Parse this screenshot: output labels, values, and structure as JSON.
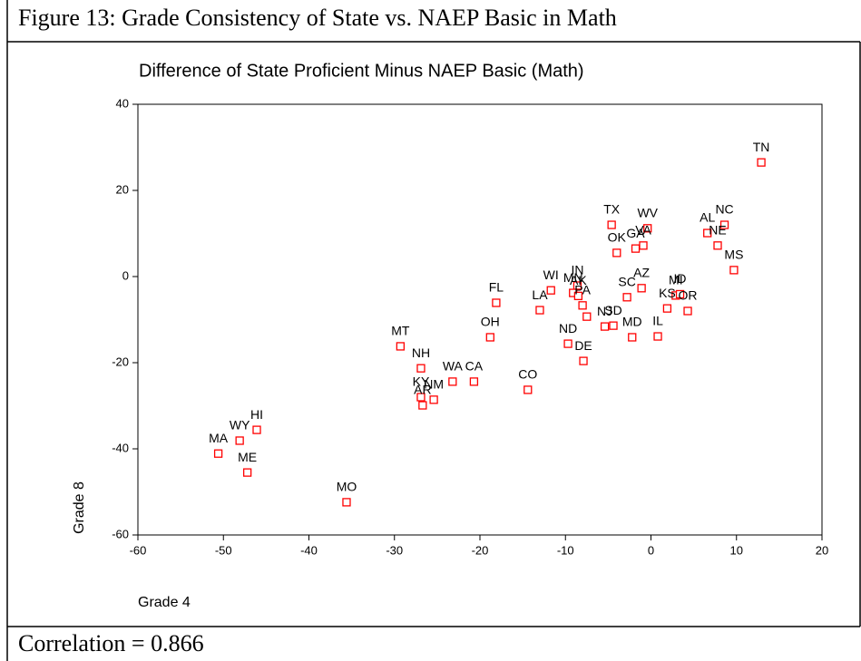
{
  "figure_title": "Figure 13: Grade Consistency of State vs. NAEP Basic in Math",
  "footer": "Correlation = 0.866",
  "chart_data": {
    "type": "scatter",
    "title": "Difference of State Proficient Minus NAEP Basic (Math)",
    "x_label": "Grade 4",
    "y_label": "Grade 8",
    "color": "#ff0000",
    "xlim": [
      -60,
      20
    ],
    "xticks": [
      -60,
      -50,
      -40,
      -30,
      -20,
      -10,
      0,
      10,
      20
    ],
    "ylim": [
      -60,
      40
    ],
    "yticks": [
      -60,
      -40,
      -20,
      0,
      20,
      40
    ],
    "labels": [
      "TN",
      "NC",
      "AL",
      "NE",
      "MS",
      "TX",
      "WV",
      "VA",
      "GA",
      "OK",
      "MI",
      "ID",
      "KS",
      "OR",
      "AZ",
      "SC",
      "IN",
      "WI",
      "MN",
      "AK",
      "PA",
      null,
      "NJ",
      "SD",
      "LA",
      "FL",
      "OH",
      "ND",
      "DE",
      "MD",
      "IL",
      "MT",
      "NH",
      "WA",
      "CA",
      "NM",
      "KY",
      "AR",
      "CO",
      "HI",
      "WY",
      "MA",
      "ME",
      "MO"
    ],
    "x": [
      12.9,
      8.6,
      6.6,
      7.8,
      9.7,
      -4.6,
      -0.4,
      -0.9,
      -1.8,
      -4.0,
      2.9,
      3.4,
      1.9,
      4.3,
      -1.1,
      -2.8,
      -8.6,
      -11.7,
      -9.1,
      -8.5,
      -8.0,
      -7.5,
      -5.4,
      -4.4,
      -13.0,
      -18.1,
      -18.8,
      -9.7,
      -7.9,
      -2.2,
      0.8,
      -29.3,
      -26.9,
      -23.2,
      -20.7,
      -25.4,
      -26.9,
      -26.7,
      -14.4,
      -46.1,
      -48.1,
      -50.6,
      -47.2,
      -35.6
    ],
    "values": [
      26.5,
      12.0,
      10.1,
      7.2,
      1.5,
      12.0,
      11.2,
      7.2,
      6.5,
      5.5,
      -4.4,
      -4.1,
      -7.4,
      -8.0,
      -2.7,
      -4.8,
      -2.1,
      -3.2,
      -3.8,
      -4.5,
      -6.7,
      -9.3,
      -11.6,
      -11.4,
      -7.8,
      -6.1,
      -14.1,
      -15.6,
      -19.6,
      -14.1,
      -13.9,
      -16.2,
      -21.3,
      -24.4,
      -24.4,
      -28.6,
      -28.0,
      -29.9,
      -26.3,
      -35.6,
      -38.1,
      -41.1,
      -45.5,
      -52.4
    ]
  }
}
